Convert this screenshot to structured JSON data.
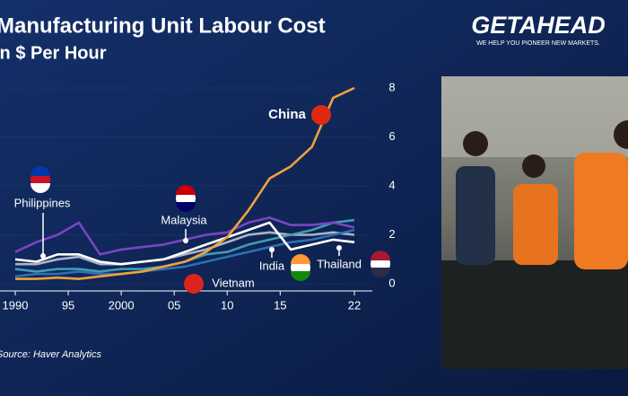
{
  "brand": {
    "name": "GETAHEAD",
    "tagline": "WE HELP YOU PIONEER NEW MARKETS."
  },
  "chart_data": {
    "type": "line",
    "title": "Manufacturing Unit Labour Cost",
    "subtitle": "In $ Per Hour",
    "source": "Source: Haver Analytics",
    "x": [
      1990,
      1992,
      1994,
      1996,
      1998,
      2000,
      2002,
      2004,
      2006,
      2008,
      2010,
      2012,
      2014,
      2016,
      2018,
      2020,
      2022
    ],
    "xlim": [
      1990,
      2022
    ],
    "xticks": [
      1990,
      {
        "value": 1995,
        "label": "95"
      },
      2000,
      {
        "value": 2005,
        "label": "05"
      },
      {
        "value": 2010,
        "label": "10"
      },
      {
        "value": 2015,
        "label": "15"
      },
      {
        "value": 2022,
        "label": "22"
      }
    ],
    "ylim": [
      0,
      8
    ],
    "yticks": [
      0,
      2,
      4,
      6,
      8
    ],
    "series": [
      {
        "name": "China",
        "color": "#f0a23a",
        "values": [
          0.2,
          0.2,
          0.25,
          0.2,
          0.3,
          0.4,
          0.5,
          0.7,
          0.9,
          1.3,
          1.9,
          3.0,
          4.3,
          4.8,
          5.6,
          7.6,
          8.0
        ]
      },
      {
        "name": "Malaysia",
        "color": "#7a44c4",
        "values": [
          1.3,
          1.7,
          2.0,
          2.5,
          1.2,
          1.4,
          1.5,
          1.6,
          1.8,
          2.0,
          2.1,
          2.5,
          2.7,
          2.4,
          2.4,
          2.5,
          2.3
        ]
      },
      {
        "name": "Philippines",
        "color": "#ffffff",
        "values": [
          1.0,
          0.9,
          1.2,
          1.2,
          0.9,
          0.8,
          0.9,
          1.0,
          1.3,
          1.6,
          1.9,
          2.2,
          2.5,
          1.4,
          1.6,
          1.8,
          1.7
        ]
      },
      {
        "name": "Vietnam",
        "color": "#2f6fb4",
        "values": [
          0.3,
          0.4,
          0.4,
          0.5,
          0.4,
          0.4,
          0.5,
          0.6,
          0.7,
          0.9,
          1.1,
          1.3,
          1.5,
          1.7,
          1.8,
          2.0,
          2.2
        ]
      },
      {
        "name": "India",
        "color": "#3e9bb8",
        "values": [
          0.6,
          0.5,
          0.6,
          0.6,
          0.5,
          0.6,
          0.6,
          0.7,
          0.9,
          1.2,
          1.3,
          1.6,
          1.8,
          2.0,
          2.2,
          2.5,
          2.6
        ]
      },
      {
        "name": "Thailand",
        "color": "#aab4c6",
        "values": [
          0.8,
          0.8,
          1.0,
          1.1,
          0.8,
          0.8,
          0.9,
          1.0,
          1.2,
          1.4,
          1.7,
          2.0,
          2.1,
          2.0,
          2.0,
          2.1,
          2.0
        ]
      }
    ]
  }
}
